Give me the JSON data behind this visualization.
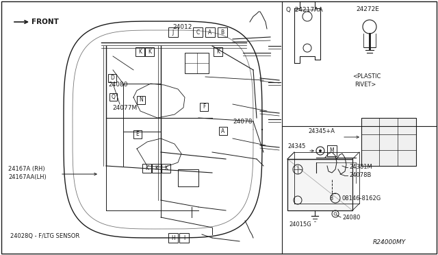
{
  "bg_color": "#ffffff",
  "line_color": "#1a1a1a",
  "text_color": "#1a1a1a",
  "border_color": "#1a1a1a",
  "figsize": [
    6.4,
    3.72
  ],
  "dpi": 100,
  "labels": {
    "front": "FRONT",
    "24012": "24012",
    "24080": "24080",
    "24077M": "24077M",
    "24078": "24078",
    "24167A": "24167A (RH)",
    "24167AA": "24167AA(LH)",
    "24028Q": "24028Q - F/LTG SENSOR",
    "Q_24217AA": "Q  24217AA",
    "24272E": "24272E",
    "plastic_rivet": "<PLASTIC\n RIVET>",
    "24345A": "24345+A",
    "24345": "24345",
    "24381M": "24381M",
    "24078B": "24078B",
    "08146": "B08146-8162G",
    "24080B": "24080",
    "24015G": "24015G",
    "R24000MY": "R24000MY"
  }
}
